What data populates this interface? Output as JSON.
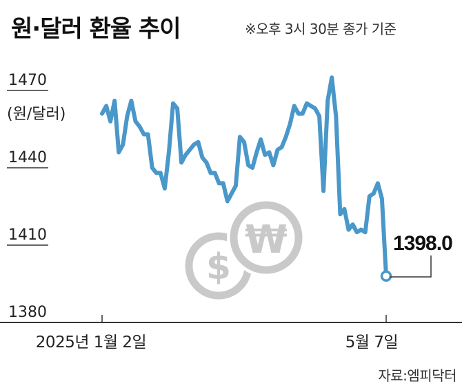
{
  "title": "원·달러 환율 추이",
  "subtitle": "※오후 3시 30분 종가 기준",
  "source": "자료:엠피닥터",
  "colors": {
    "line": "#4a97c9",
    "coin": "#c9c9c9",
    "axis": "#333333",
    "text": "#222222"
  },
  "chart_data": {
    "type": "line",
    "ylabel": "(원/달러)",
    "yticks": [
      1470,
      1440,
      1410,
      1380
    ],
    "ylim": [
      1380,
      1477
    ],
    "xticks": [
      {
        "label": "2025년 1월 2일",
        "x": 0
      },
      {
        "label": "5월 7일",
        "x": 81
      }
    ],
    "end_label": "1398.0",
    "series": [
      {
        "values": [
          1461,
          1464,
          1458,
          1466,
          1446,
          1449,
          1460,
          1466,
          1458,
          1456,
          1453,
          1453,
          1440,
          1438,
          1438,
          1432,
          1446,
          1465,
          1463,
          1442,
          1445,
          1447,
          1449,
          1450,
          1444,
          1442,
          1438,
          1438,
          1434,
          1434,
          1427,
          1430,
          1433,
          1452,
          1450,
          1441,
          1440,
          1446,
          1451,
          1445,
          1446,
          1441,
          1447,
          1448,
          1452,
          1457,
          1464,
          1461,
          1461,
          1465,
          1464,
          1463,
          1460,
          1431,
          1466,
          1475,
          1460,
          1422,
          1424,
          1416,
          1418,
          1415,
          1416,
          1415,
          1429,
          1430,
          1434,
          1428,
          1398.0
        ]
      }
    ]
  }
}
